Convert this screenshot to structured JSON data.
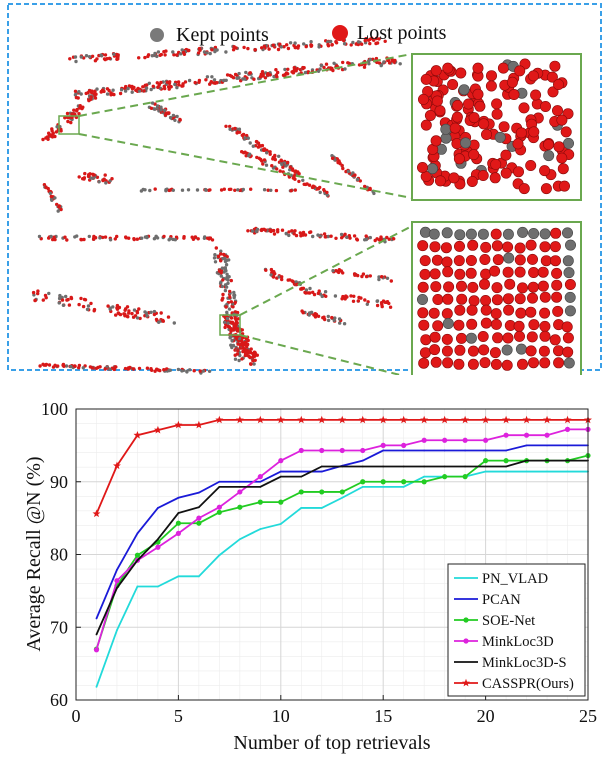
{
  "point_cloud_panel": {
    "legend": [
      {
        "label": "Kept points",
        "color": "#7a7a7a"
      },
      {
        "label": "Lost points",
        "color": "#e01818"
      }
    ],
    "frame_color": "#3aa0e8",
    "zoom_box_color": "#6aa84f"
  },
  "chart_data": {
    "type": "line",
    "xlabel": "Number of top retrievals",
    "ylabel": "Average Recall @N (%)",
    "xlim": [
      0,
      25
    ],
    "ylim": [
      60,
      100
    ],
    "xticks": [
      0,
      5,
      10,
      15,
      20,
      25
    ],
    "yticks": [
      60,
      70,
      80,
      90,
      100
    ],
    "grid": true,
    "legend_position": "bottom-right",
    "x": [
      1,
      2,
      3,
      4,
      5,
      6,
      7,
      8,
      9,
      10,
      11,
      12,
      13,
      14,
      15,
      16,
      17,
      18,
      19,
      20,
      21,
      22,
      23,
      24,
      25
    ],
    "series": [
      {
        "name": "PN_VLAD",
        "color": "#22dada",
        "marker": "none",
        "values": [
          61.8,
          69.6,
          75.6,
          75.6,
          77.0,
          77.0,
          79.9,
          82.1,
          83.5,
          84.2,
          86.4,
          86.4,
          87.8,
          89.3,
          89.3,
          89.3,
          90.7,
          90.7,
          90.7,
          91.4,
          91.4,
          91.4,
          91.4,
          91.4,
          91.4
        ]
      },
      {
        "name": "PCAN",
        "color": "#1a1ad8",
        "marker": "none",
        "values": [
          71.2,
          77.9,
          82.9,
          86.4,
          87.8,
          88.5,
          90.0,
          90.0,
          90.0,
          91.4,
          91.4,
          91.4,
          92.2,
          92.9,
          94.3,
          94.3,
          94.3,
          94.3,
          94.3,
          94.3,
          94.3,
          95.0,
          95.0,
          95.0,
          95.0
        ]
      },
      {
        "name": "SOE-Net",
        "color": "#22cc22",
        "marker": "dot",
        "values": [
          67.0,
          75.7,
          79.9,
          81.7,
          84.3,
          84.3,
          85.8,
          86.5,
          87.2,
          87.2,
          88.6,
          88.6,
          88.6,
          90.0,
          90.0,
          90.0,
          90.0,
          90.7,
          90.7,
          92.9,
          92.9,
          92.9,
          92.9,
          92.9,
          93.6
        ]
      },
      {
        "name": "MinkLoc3D",
        "color": "#dd22dd",
        "marker": "dot",
        "values": [
          66.9,
          76.4,
          79.2,
          81.0,
          82.9,
          85.0,
          86.5,
          88.6,
          90.7,
          92.9,
          94.3,
          94.3,
          94.3,
          94.3,
          95.0,
          95.0,
          95.7,
          95.7,
          95.7,
          95.7,
          96.4,
          96.4,
          96.4,
          97.2,
          97.2
        ]
      },
      {
        "name": "MinkLoc3D-S",
        "color": "#111111",
        "marker": "none",
        "values": [
          69.0,
          75.4,
          79.2,
          82.1,
          85.7,
          86.5,
          89.3,
          89.3,
          89.3,
          90.7,
          90.7,
          92.1,
          92.1,
          92.1,
          92.1,
          92.1,
          92.1,
          92.1,
          92.1,
          92.1,
          92.1,
          92.9,
          92.9,
          92.9,
          92.9
        ]
      },
      {
        "name": "CASSPR(Ours)",
        "color": "#e01818",
        "marker": "star",
        "values": [
          85.6,
          92.2,
          96.4,
          97.1,
          97.8,
          97.8,
          98.5,
          98.5,
          98.5,
          98.5,
          98.5,
          98.5,
          98.5,
          98.5,
          98.5,
          98.5,
          98.5,
          98.5,
          98.5,
          98.5,
          98.5,
          98.5,
          98.5,
          98.5,
          98.5
        ]
      }
    ]
  }
}
